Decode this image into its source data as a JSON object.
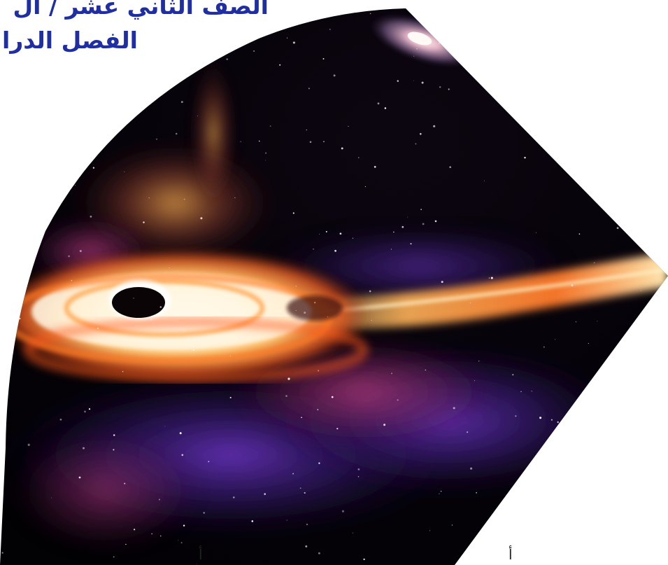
{
  "header": {
    "title_line_1": "الصف الثاني عشر / ال",
    "title_line_2": "الفصل الدرا"
  },
  "illustration": {
    "subject": "black hole with accretion disk",
    "colors": {
      "space": "#050208",
      "disk_hot": "#fff6d8",
      "disk_orange": "#ff8a2a",
      "nebula_purple": "#4a1e8c",
      "nebula_magenta": "#9a2c6e"
    }
  },
  "footer": {
    "mark_left": "أ",
    "mark_right": "أ"
  }
}
